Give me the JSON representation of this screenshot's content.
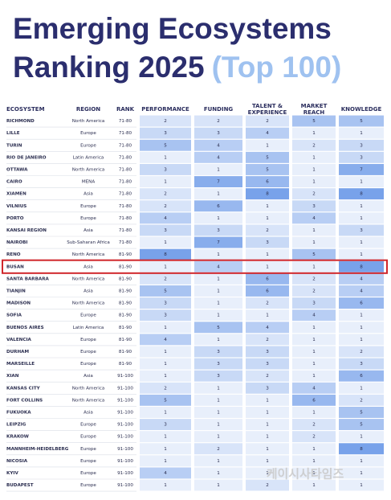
{
  "header": {
    "title_line1": "Emerging Ecosystems",
    "title_line2": "Ranking 2025",
    "title_highlight": "(Top 100)"
  },
  "table": {
    "columns": [
      [
        "ECOSYSTEM"
      ],
      [
        "REGION"
      ],
      [
        "RANK"
      ],
      [
        "PERFORMANCE"
      ],
      [
        "FUNDING"
      ],
      [
        "TALENT &",
        "EXPERIENCE"
      ],
      [
        "MARKET",
        "REACH"
      ],
      [
        "KNOWLEDGE"
      ]
    ],
    "rows": [
      [
        "RICHMOND",
        "North America",
        "71-80",
        2,
        2,
        2,
        5,
        5
      ],
      [
        "LILLE",
        "Europe",
        "71-80",
        3,
        3,
        4,
        1,
        1
      ],
      [
        "TURIN",
        "Europe",
        "71-80",
        5,
        4,
        1,
        2,
        3
      ],
      [
        "RIO DE JANEIRO",
        "Latin America",
        "71-80",
        1,
        4,
        5,
        1,
        3
      ],
      [
        "OTTAWA",
        "North America",
        "71-80",
        3,
        1,
        5,
        1,
        7
      ],
      [
        "CAIRO",
        "MENA",
        "71-80",
        1,
        7,
        6,
        1,
        1
      ],
      [
        "XIAMEN",
        "Asia",
        "71-80",
        2,
        1,
        8,
        2,
        8
      ],
      [
        "VILNIUS",
        "Europe",
        "71-80",
        2,
        6,
        1,
        3,
        1
      ],
      [
        "PORTO",
        "Europe",
        "71-80",
        4,
        1,
        1,
        4,
        1
      ],
      [
        "KANSAI REGION",
        "Asia",
        "71-80",
        3,
        3,
        2,
        1,
        3
      ],
      [
        "NAIROBI",
        "Sub-Saharan Africa",
        "71-80",
        1,
        7,
        3,
        1,
        1
      ],
      [
        "RENO",
        "North America",
        "81-90",
        8,
        1,
        1,
        5,
        1
      ],
      [
        "BUSAN",
        "Asia",
        "81-90",
        1,
        4,
        1,
        1,
        8
      ],
      [
        "SANTA BARBARA",
        "North America",
        "81-90",
        2,
        1,
        6,
        2,
        4
      ],
      [
        "TIANJIN",
        "Asia",
        "81-90",
        5,
        1,
        6,
        2,
        4
      ],
      [
        "MADISON",
        "North America",
        "81-90",
        3,
        1,
        2,
        3,
        6
      ],
      [
        "SOFIA",
        "Europe",
        "81-90",
        3,
        1,
        1,
        4,
        1
      ],
      [
        "BUENOS AIRES",
        "Latin America",
        "81-90",
        1,
        5,
        4,
        1,
        1
      ],
      [
        "VALENCIA",
        "Europe",
        "81-90",
        4,
        1,
        2,
        1,
        1
      ],
      [
        "DURHAM",
        "Europe",
        "81-90",
        1,
        3,
        3,
        1,
        2
      ],
      [
        "MARSEILLE",
        "Europe",
        "81-90",
        1,
        3,
        3,
        1,
        3
      ],
      [
        "XIAN",
        "Asia",
        "91-100",
        1,
        3,
        2,
        1,
        6
      ],
      [
        "KANSAS CITY",
        "North America",
        "91-100",
        2,
        1,
        3,
        4,
        1
      ],
      [
        "FORT COLLINS",
        "North America",
        "91-100",
        5,
        1,
        1,
        6,
        2
      ],
      [
        "FUKUOKA",
        "Asia",
        "91-100",
        1,
        1,
        1,
        1,
        5
      ],
      [
        "LEIPZIG",
        "Europe",
        "91-100",
        3,
        1,
        1,
        2,
        5
      ],
      [
        "KRAKOW",
        "Europe",
        "91-100",
        1,
        1,
        1,
        2,
        1
      ],
      [
        "MANNHEIM-HEIDELBERG",
        "Europe",
        "91-100",
        1,
        2,
        1,
        1,
        8
      ],
      [
        "NICOSIA",
        "Europe",
        "91-100",
        1,
        1,
        1,
        1,
        1
      ],
      [
        "KYIV",
        "Europe",
        "91-100",
        4,
        1,
        1,
        1,
        1
      ],
      [
        "BUDAPEST",
        "Europe",
        "91-100",
        1,
        1,
        2,
        1,
        1
      ]
    ]
  },
  "watermark": "케이시사타임즈"
}
